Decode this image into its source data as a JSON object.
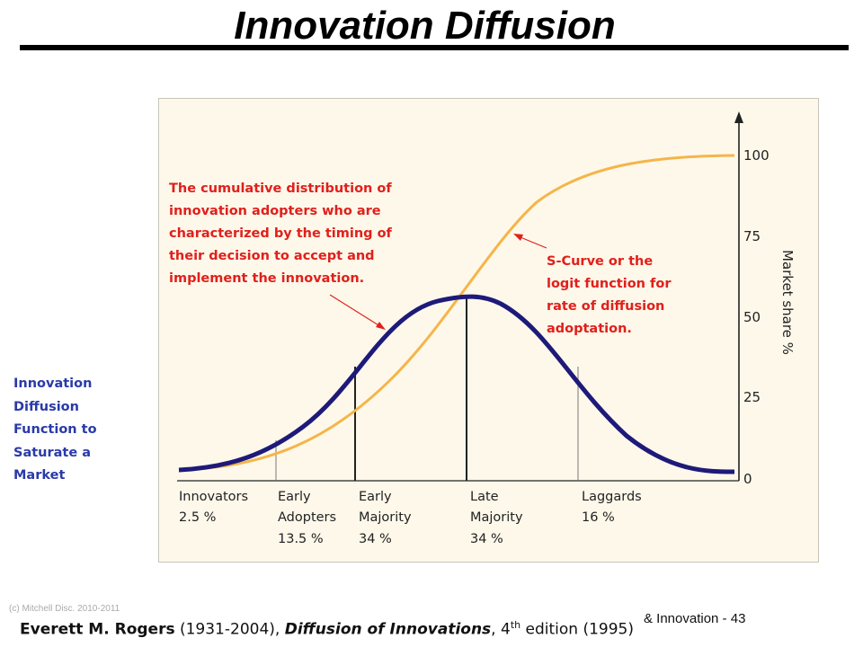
{
  "slide": {
    "title": "Innovation Diffusion"
  },
  "side_note": {
    "lines": [
      "Innovation",
      "Diffusion",
      "Function to",
      "Saturate a",
      "Market"
    ]
  },
  "diagram": {
    "annotation_left": [
      "The cumulative distribution  of",
      "innovation  adopters who are",
      "characterized by the timing of",
      "their decision to accept and",
      "implement the innovation."
    ],
    "annotation_right": [
      "S-Curve or the",
      "logit function for",
      "rate of diffusion",
      "adoptation."
    ],
    "axis_label": "Market share %",
    "y_ticks": [
      "100",
      "75",
      "50",
      "25",
      "0"
    ],
    "categories": [
      {
        "name1": "Innovators",
        "name2": "",
        "pct": "2.5 %"
      },
      {
        "name1": "Early",
        "name2": "Adopters",
        "pct": "13.5 %"
      },
      {
        "name1": "Early",
        "name2": "Majority",
        "pct": "34 %"
      },
      {
        "name1": "Late",
        "name2": "Majority",
        "pct": "34 %"
      },
      {
        "name1": "Laggards",
        "name2": "",
        "pct": "16 %"
      }
    ],
    "colors": {
      "bell_curve": "#1e1a7a",
      "s_curve": "#f5b54a",
      "annotation": "#e0201c",
      "background": "#fdf8ea"
    }
  },
  "footer": {
    "obscured_text": "(c) Mitchell Disc. 2010-2011",
    "course": "& Innovation  - 43"
  },
  "citation": {
    "author": "Everett M. Rogers",
    "years": " (1931-2004), ",
    "book": "Diffusion of Innovations",
    "comma": ", ",
    "edition_num": "4",
    "edition_sup": "th",
    "edition_rest": " edition (1995)"
  }
}
